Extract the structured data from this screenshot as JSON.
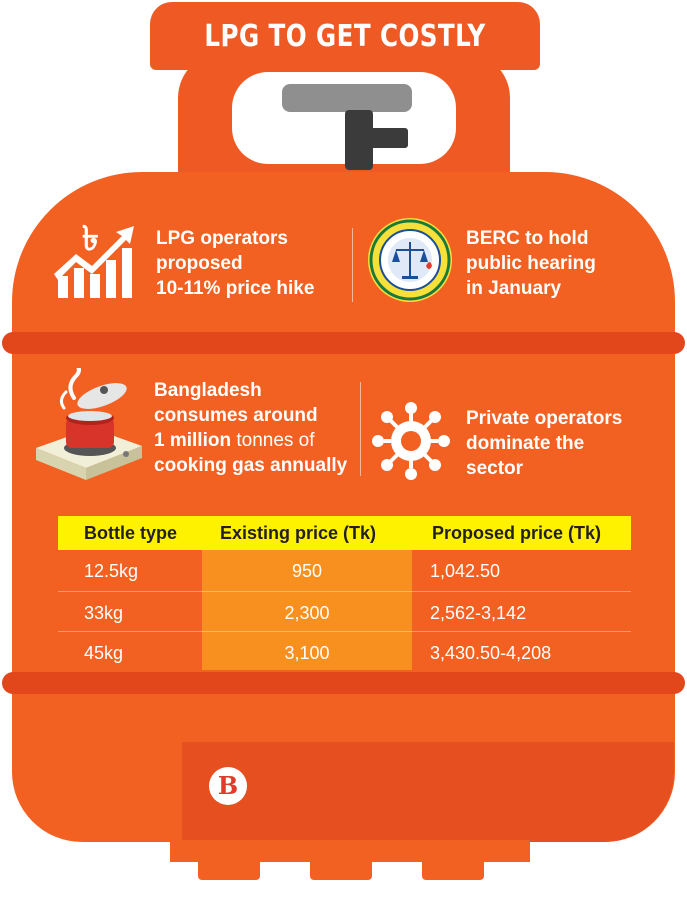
{
  "title": "LPG TO GET COSTLY",
  "facts": [
    {
      "line1": "LPG operators",
      "line2": "proposed",
      "line3": "10-11% price hike",
      "icon": "growth-chart-icon"
    },
    {
      "line1": "BERC to hold",
      "line2": "public hearing",
      "line3": "in January",
      "icon": "berc-seal-icon"
    },
    {
      "line1": "Bangladesh",
      "line2": "consumes around",
      "line3_bold": "1 million",
      "line3_rest": " tonnes of",
      "line4": "cooking gas annually",
      "icon": "cooking-stove-icon"
    },
    {
      "line1": "Private operators",
      "line2": "dominate the",
      "line3": "sector",
      "icon": "network-gear-icon"
    }
  ],
  "table": {
    "headers": [
      "Bottle type",
      "Existing price (Tk)",
      "Proposed price (Tk)"
    ],
    "rows": [
      [
        "12.5kg",
        "950",
        "1,042.50"
      ],
      [
        "33kg",
        "2,300",
        "2,562-3,142"
      ],
      [
        "45kg",
        "3,100",
        "3,430.50-4,208"
      ]
    ]
  },
  "brand_logo": "B",
  "colors": {
    "cylinder": "#f26122",
    "ring": "#e1471b",
    "header_yellow": "#fff200",
    "highlight_column": "#f7901e"
  }
}
